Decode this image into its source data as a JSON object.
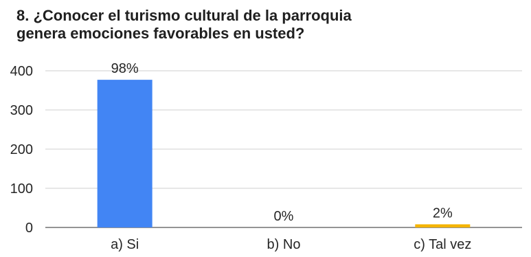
{
  "chart_title_lines": [
    "8. ¿Conocer el turismo cultural de la parroquia",
    "genera emociones favorables en usted?"
  ],
  "chart_data": {
    "type": "bar",
    "title": "8. ¿Conocer el turismo cultural de la parroquia genera emociones favorables en usted?",
    "categories": [
      "a) Si",
      "b) No",
      "c) Tal vez"
    ],
    "values": [
      377,
      0,
      8
    ],
    "data_labels": [
      "98%",
      "0%",
      "2%"
    ],
    "bar_colors": [
      "#4285f4",
      "#4285f4",
      "#f4b400"
    ],
    "y_ticks": [
      "0",
      "100",
      "200",
      "300",
      "400"
    ],
    "ylim": [
      0,
      400
    ],
    "grid": true,
    "legend": "none",
    "xlabel": "",
    "ylabel": ""
  },
  "colors": {
    "gridline": "#cfcfcf",
    "baseline": "#555555",
    "text": "#262626"
  }
}
